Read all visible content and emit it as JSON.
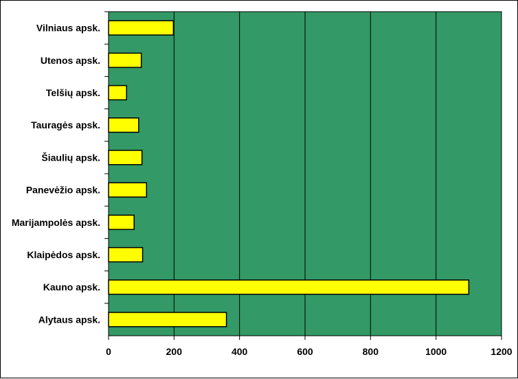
{
  "chart_data": {
    "type": "bar",
    "orientation": "horizontal",
    "categories": [
      "Vilniaus apsk.",
      "Utenos apsk.",
      "Telšių apsk.",
      "Tauragės apsk.",
      "Šiaulių apsk.",
      "Panevėžio apsk.",
      "Marijampolės apsk.",
      "Klaipėdos apsk.",
      "Kauno apsk.",
      "Alytaus apsk."
    ],
    "values": [
      198,
      100,
      55,
      92,
      102,
      116,
      78,
      104,
      1100,
      360
    ],
    "xlim": [
      0,
      1200
    ],
    "xticks": [
      "0",
      "200",
      "400",
      "600",
      "800",
      "1000",
      "1200"
    ],
    "title": "",
    "xlabel": "",
    "ylabel": "",
    "grid": "vertical",
    "legend": "none",
    "colors": {
      "plot_background": "#339966",
      "bar_fill": "#ffff00",
      "bar_stroke": "#000000",
      "gridline": "#000000"
    }
  }
}
